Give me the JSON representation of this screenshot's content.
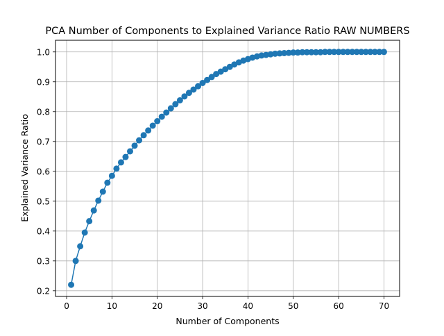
{
  "chart_data": {
    "type": "line",
    "title": "PCA Number of Components to Explained Variance Ratio RAW NUMBERS",
    "xlabel": "Number of Components",
    "ylabel": "Explained Variance Ratio",
    "xlim": [
      -2.45,
      73.45
    ],
    "ylim": [
      0.181,
      1.039
    ],
    "xticks": [
      0,
      10,
      20,
      30,
      40,
      50,
      60,
      70
    ],
    "yticks": [
      0.2,
      0.3,
      0.4,
      0.5,
      0.6,
      0.7,
      0.8,
      0.9,
      1.0
    ],
    "xtick_labels": [
      "0",
      "10",
      "20",
      "30",
      "40",
      "50",
      "60",
      "70"
    ],
    "ytick_labels": [
      "0.2",
      "0.3",
      "0.4",
      "0.5",
      "0.6",
      "0.7",
      "0.8",
      "0.9",
      "1.0"
    ],
    "grid": true,
    "legend": "none",
    "series": [
      {
        "color": "#1f77b4",
        "marker": "circle",
        "x": [
          1,
          2,
          3,
          4,
          5,
          6,
          7,
          8,
          9,
          10,
          11,
          12,
          13,
          14,
          15,
          16,
          17,
          18,
          19,
          20,
          21,
          22,
          23,
          24,
          25,
          26,
          27,
          28,
          29,
          30,
          31,
          32,
          33,
          34,
          35,
          36,
          37,
          38,
          39,
          40,
          41,
          42,
          43,
          44,
          45,
          46,
          47,
          48,
          49,
          50,
          51,
          52,
          53,
          54,
          55,
          56,
          57,
          58,
          59,
          60,
          61,
          62,
          63,
          64,
          65,
          66,
          67,
          68,
          69,
          70
        ],
        "y": [
          0.22,
          0.3,
          0.349,
          0.395,
          0.433,
          0.469,
          0.502,
          0.532,
          0.562,
          0.585,
          0.609,
          0.63,
          0.648,
          0.667,
          0.686,
          0.704,
          0.721,
          0.737,
          0.753,
          0.768,
          0.783,
          0.797,
          0.811,
          0.825,
          0.838,
          0.851,
          0.863,
          0.874,
          0.885,
          0.896,
          0.906,
          0.916,
          0.926,
          0.934,
          0.942,
          0.95,
          0.958,
          0.965,
          0.971,
          0.976,
          0.981,
          0.985,
          0.988,
          0.99,
          0.992,
          0.994,
          0.995,
          0.996,
          0.997,
          0.998,
          0.998,
          0.999,
          0.999,
          0.999,
          0.999,
          0.999,
          1.0,
          1.0,
          1.0,
          1.0,
          1.0,
          1.0,
          1.0,
          1.0,
          1.0,
          1.0,
          1.0,
          1.0,
          1.0,
          1.0
        ]
      }
    ]
  }
}
